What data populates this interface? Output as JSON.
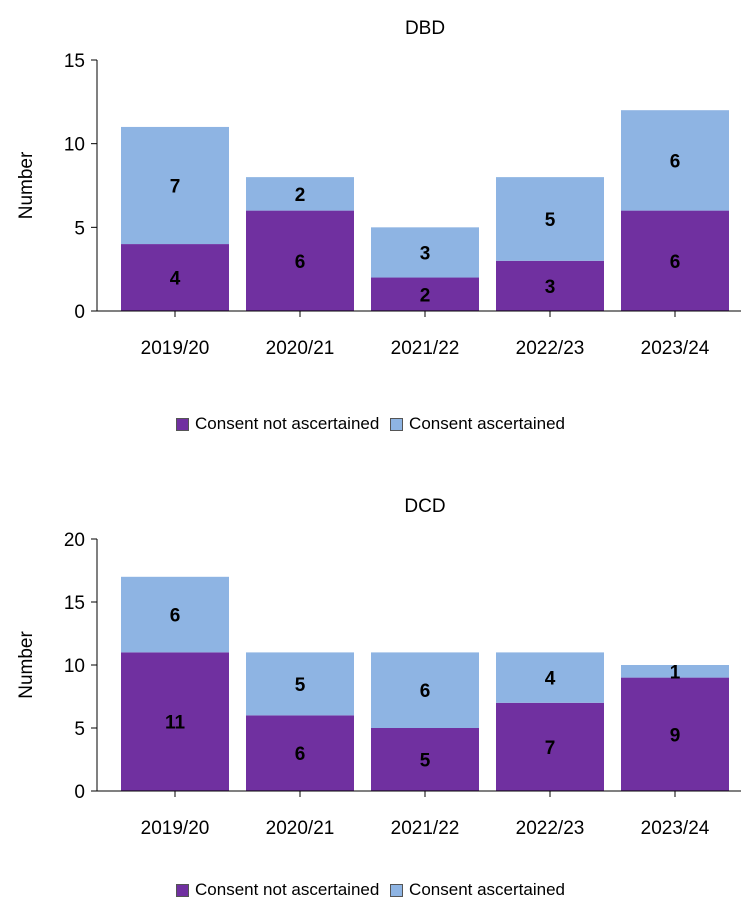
{
  "chart_data": [
    {
      "type": "bar",
      "stacked": true,
      "title": "DBD",
      "ylabel": "Number",
      "xlabel": "",
      "categories": [
        "2019/20",
        "2020/21",
        "2021/22",
        "2022/23",
        "2023/24"
      ],
      "ylim": [
        0,
        15
      ],
      "yticks": [
        0,
        5,
        10,
        15
      ],
      "grid": false,
      "legend_position": "bottom",
      "series": [
        {
          "name": "Consent not ascertained",
          "values": [
            4,
            6,
            2,
            3,
            6
          ],
          "color": "#7030A0"
        },
        {
          "name": "Consent ascertained",
          "values": [
            7,
            2,
            3,
            5,
            6
          ],
          "color": "#8EB4E3"
        }
      ]
    },
    {
      "type": "bar",
      "stacked": true,
      "title": "DCD",
      "ylabel": "Number",
      "xlabel": "",
      "categories": [
        "2019/20",
        "2020/21",
        "2021/22",
        "2022/23",
        "2023/24"
      ],
      "ylim": [
        0,
        20
      ],
      "yticks": [
        0,
        5,
        10,
        15,
        20
      ],
      "grid": false,
      "legend_position": "bottom",
      "series": [
        {
          "name": "Consent not ascertained",
          "values": [
            11,
            6,
            5,
            7,
            9
          ],
          "color": "#7030A0"
        },
        {
          "name": "Consent ascertained",
          "values": [
            6,
            5,
            6,
            4,
            1
          ],
          "color": "#8EB4E3"
        }
      ]
    }
  ]
}
